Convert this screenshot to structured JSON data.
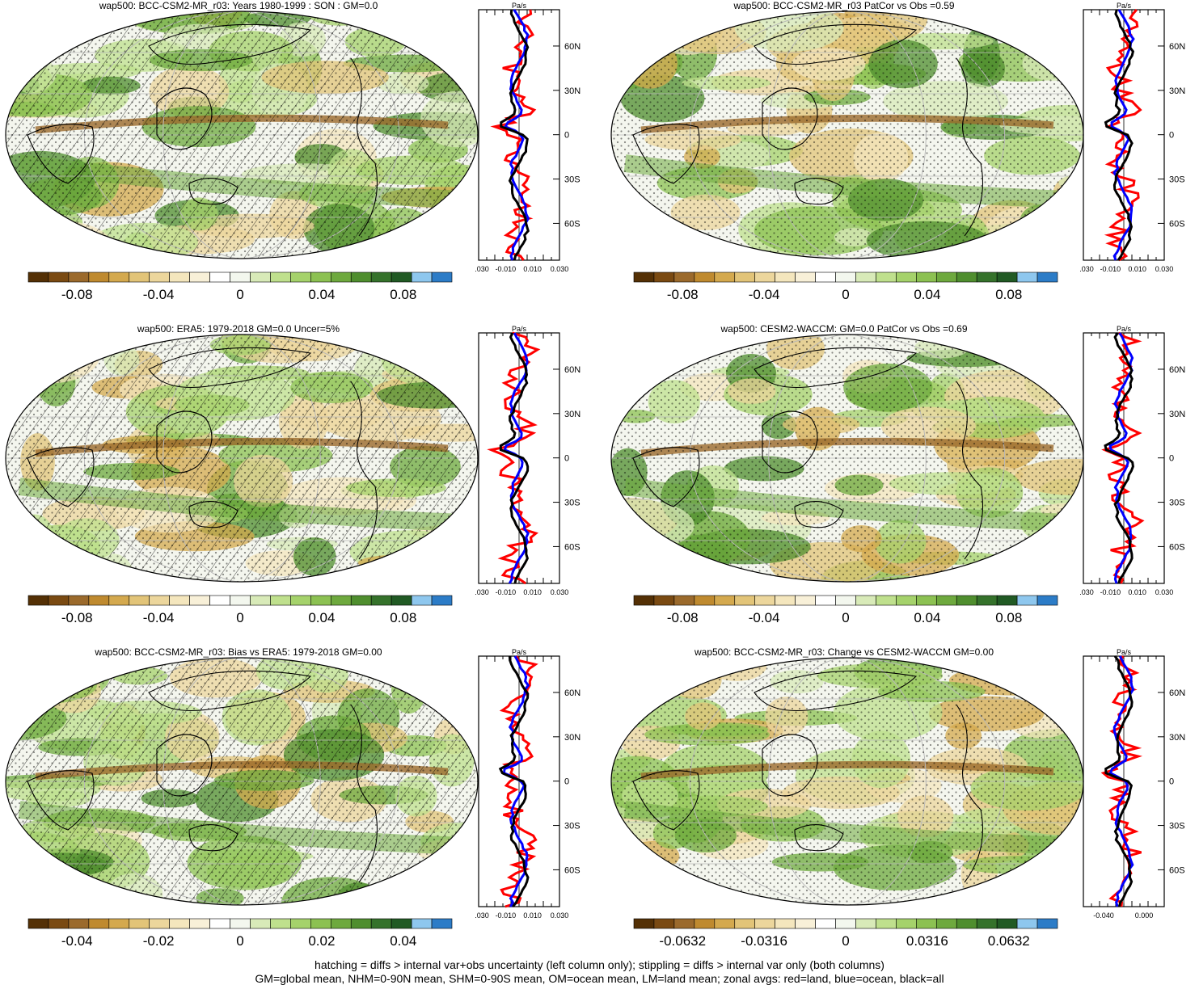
{
  "palette": [
    "#543005",
    "#7a4a12",
    "#9b6a2c",
    "#bf8a2f",
    "#d4a94e",
    "#e2c478",
    "#ecd69c",
    "#f4e6bd",
    "#f8f0d8",
    "#ffffff",
    "#f3f7ee",
    "#d8eab8",
    "#bfe08d",
    "#a5d26b",
    "#8cc152",
    "#6ea93e",
    "#4f8e2e",
    "#35722b",
    "#215a24",
    "#8ec7ee",
    "#2c7cc7"
  ],
  "series_colors": {
    "land": "#ff0000",
    "ocean": "#0000ff",
    "all": "#000000"
  },
  "zonal_unit": "Pa/s",
  "lat_ticks": [
    "60N",
    "30N",
    "0",
    "30S",
    "60S"
  ],
  "panels": [
    {
      "id": "p1",
      "title": "wap500: BCC-CSM2-MR_r03: Years 1980-1999 : SON : GM=0.0",
      "hatching": true,
      "cbar_labels": [
        "-0.08",
        "-0.04",
        "0",
        "0.04",
        "0.08"
      ],
      "zonal_ticks": [
        "-0.030",
        "-0.010",
        "0.010",
        "0.030"
      ]
    },
    {
      "id": "p2",
      "title": "wap500: BCC-CSM2-MR_r03 PatCor vs Obs =0.59",
      "hatching": false,
      "cbar_labels": [
        "-0.08",
        "-0.04",
        "0",
        "0.04",
        "0.08"
      ],
      "zonal_ticks": [
        "-0.030",
        "-0.010",
        "0.010",
        "0.030"
      ]
    },
    {
      "id": "p3",
      "title": "wap500: ERA5: 1979-2018 GM=0.0 Uncer=5%",
      "hatching": true,
      "cbar_labels": [
        "-0.08",
        "-0.04",
        "0",
        "0.04",
        "0.08"
      ],
      "zonal_ticks": [
        "-0.030",
        "-0.010",
        "0.010",
        "0.030"
      ]
    },
    {
      "id": "p4",
      "title": "wap500: CESM2-WACCM: GM=0.0 PatCor vs Obs =0.69",
      "hatching": false,
      "cbar_labels": [
        "-0.08",
        "-0.04",
        "0",
        "0.04",
        "0.08"
      ],
      "zonal_ticks": [
        "-0.030",
        "-0.010",
        "0.010",
        "0.030"
      ]
    },
    {
      "id": "p5",
      "title": "wap500: BCC-CSM2-MR_r03: Bias vs ERA5: 1979-2018  GM=0.00",
      "hatching": true,
      "cbar_labels": [
        "-0.04",
        "-0.02",
        "0",
        "0.02",
        "0.04"
      ],
      "zonal_ticks": [
        "-0.030",
        "-0.010",
        "0.010",
        "0.030"
      ]
    },
    {
      "id": "p6",
      "title": "wap500: BCC-CSM2-MR_r03: Change vs CESM2-WACCM GM=0.00",
      "hatching": false,
      "cbar_labels": [
        "-0.0632",
        "-0.0316",
        "0",
        "0.0316",
        "0.0632"
      ],
      "zonal_ticks": [
        "-0.040",
        "0.000"
      ]
    }
  ],
  "footer": {
    "line1": "hatching = diffs > internal var+obs uncertainty (left column only); stippling = diffs > internal var only (both columns)",
    "line2": "GM=global mean, NHM=0-90N mean, SHM=0-90S mean, OM=ocean mean, LM=land mean; zonal avgs: red=land, blue=ocean, black=all"
  }
}
